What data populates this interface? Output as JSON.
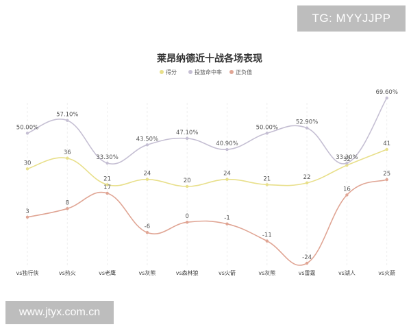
{
  "watermarks": {
    "top": "TG: MYYJJPP",
    "bottom": "www.jtyx.com.cn"
  },
  "chart_data": {
    "type": "line",
    "title": "莱昂纳德近十战各场表现",
    "categories": [
      "vs独行侠",
      "vs热火",
      "vs老鹰",
      "vs灰熊",
      "vs森林狼",
      "vs火箭",
      "vs灰熊",
      "vs雷霆",
      "vs湖人",
      "vs火箭"
    ],
    "series": [
      {
        "name": "得分",
        "color": "#e8df8a",
        "values": [
          30,
          36,
          21,
          24,
          20,
          24,
          21,
          22,
          32,
          41
        ],
        "labels": [
          "30",
          "36",
          "21",
          "24",
          "20",
          "24",
          "21",
          "22",
          "32",
          "41"
        ]
      },
      {
        "name": "投篮命中率",
        "color": "#c5bfd3",
        "values": [
          50.0,
          57.1,
          33.3,
          43.5,
          47.1,
          40.9,
          50.0,
          52.9,
          33.3,
          69.6
        ],
        "labels": [
          "50.00%",
          "57.10%",
          "33.30%",
          "43.50%",
          "47.10%",
          "40.90%",
          "50.00%",
          "52.90%",
          "33.30%",
          "69.60%"
        ]
      },
      {
        "name": "正负值",
        "color": "#e0a594",
        "values": [
          3,
          8,
          17,
          -6,
          0,
          -1,
          -11,
          -24,
          16,
          25
        ],
        "labels": [
          "3",
          "8",
          "17",
          "-6",
          "0",
          "-1",
          "-11",
          "-24",
          "16",
          "25"
        ]
      }
    ],
    "legend_position": "top-center",
    "grid": "vertical-dashed",
    "y_axis_visible": false
  }
}
